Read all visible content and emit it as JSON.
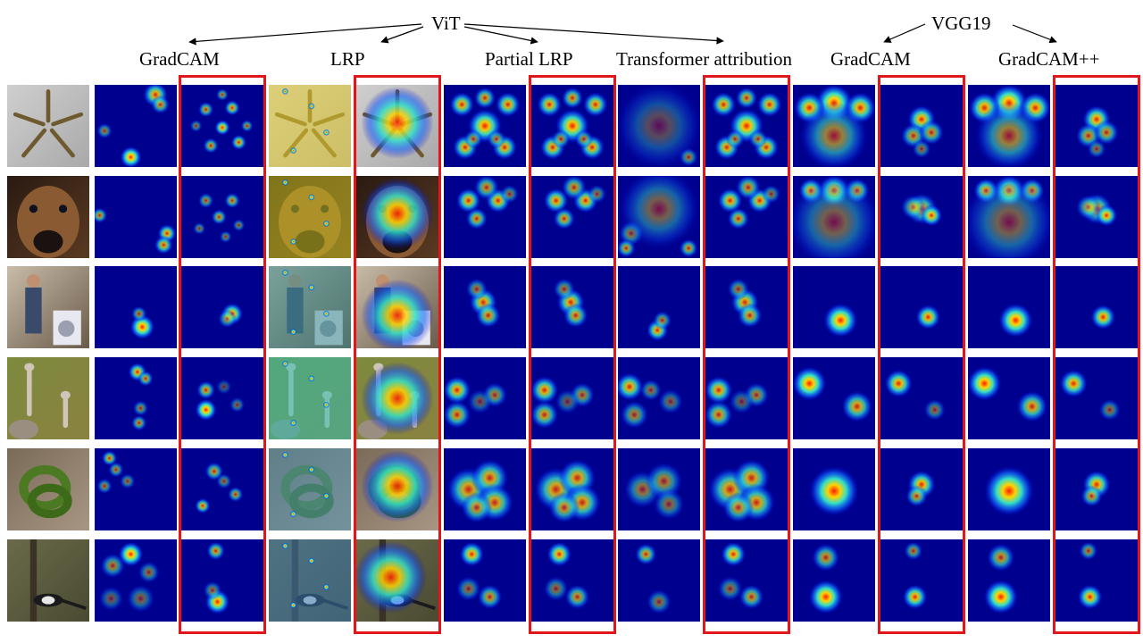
{
  "figure": {
    "group_labels": {
      "vit": "ViT",
      "vgg": "VGG19"
    },
    "column_labels": [
      "GradCAM",
      "LRP",
      "Partial LRP",
      "Transformer attribution",
      "GradCAM",
      "GradCAM++"
    ],
    "rows": [
      "screws",
      "dog",
      "kitchen",
      "ostriches",
      "snake",
      "magpie"
    ],
    "columns": [
      {
        "kind": "input"
      },
      {
        "kind": "map",
        "method": "GradCAM",
        "backbone": "ViT",
        "variant": "original"
      },
      {
        "kind": "map",
        "method": "GradCAM",
        "backbone": "ViT",
        "variant": "ours",
        "highlighted": true
      },
      {
        "kind": "overlay",
        "method": "LRP",
        "backbone": "ViT",
        "variant": "original"
      },
      {
        "kind": "overlay",
        "method": "LRP",
        "backbone": "ViT",
        "variant": "ours",
        "highlighted": true
      },
      {
        "kind": "map",
        "method": "Partial LRP",
        "backbone": "ViT",
        "variant": "original"
      },
      {
        "kind": "map",
        "method": "Partial LRP",
        "backbone": "ViT",
        "variant": "ours",
        "highlighted": true
      },
      {
        "kind": "map",
        "method": "Transformer attribution",
        "backbone": "ViT",
        "variant": "original"
      },
      {
        "kind": "map",
        "method": "Transformer attribution",
        "backbone": "ViT",
        "variant": "ours",
        "highlighted": true
      },
      {
        "kind": "map",
        "method": "GradCAM",
        "backbone": "VGG19",
        "variant": "original"
      },
      {
        "kind": "map",
        "method": "GradCAM",
        "backbone": "VGG19",
        "variant": "ours",
        "highlighted": true
      },
      {
        "kind": "map",
        "method": "GradCAM++",
        "backbone": "VGG19",
        "variant": "original"
      },
      {
        "kind": "map",
        "method": "GradCAM++",
        "backbone": "VGG19",
        "variant": "ours",
        "highlighted": true
      }
    ],
    "colors": {
      "highlight": "#e0161b",
      "heatmap_base": "#00008f"
    }
  }
}
